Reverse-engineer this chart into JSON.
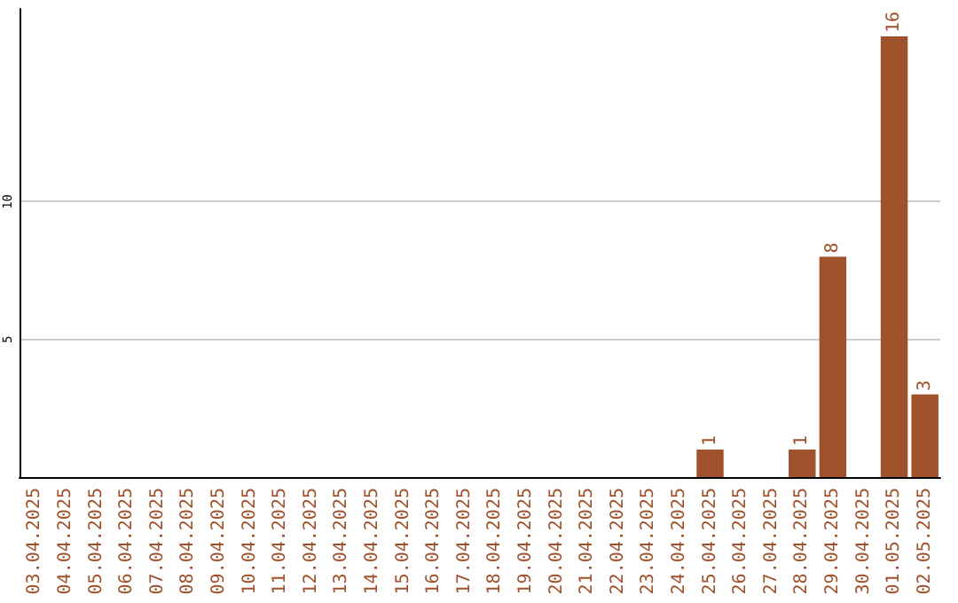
{
  "chart_data": {
    "type": "bar",
    "categories": [
      "03.04.2025",
      "04.04.2025",
      "05.04.2025",
      "06.04.2025",
      "07.04.2025",
      "08.04.2025",
      "09.04.2025",
      "10.04.2025",
      "11.04.2025",
      "12.04.2025",
      "13.04.2025",
      "14.04.2025",
      "15.04.2025",
      "16.04.2025",
      "17.04.2025",
      "18.04.2025",
      "19.04.2025",
      "20.04.2025",
      "21.04.2025",
      "22.04.2025",
      "23.04.2025",
      "24.04.2025",
      "25.04.2025",
      "26.04.2025",
      "27.04.2025",
      "28.04.2025",
      "29.04.2025",
      "30.04.2025",
      "01.05.2025",
      "02.05.2025"
    ],
    "values": [
      0,
      0,
      0,
      0,
      0,
      0,
      0,
      0,
      0,
      0,
      0,
      0,
      0,
      0,
      0,
      0,
      0,
      0,
      0,
      0,
      0,
      0,
      1,
      0,
      0,
      1,
      8,
      0,
      16,
      3
    ],
    "value_labels": [
      null,
      null,
      null,
      null,
      null,
      null,
      null,
      null,
      null,
      null,
      null,
      null,
      null,
      null,
      null,
      null,
      null,
      null,
      null,
      null,
      null,
      null,
      "1",
      null,
      null,
      "1",
      "8",
      null,
      "16",
      "3"
    ],
    "color": "#a0522d",
    "ylim": [
      0,
      17
    ],
    "yticks": [
      5,
      10
    ],
    "grid": "y"
  }
}
